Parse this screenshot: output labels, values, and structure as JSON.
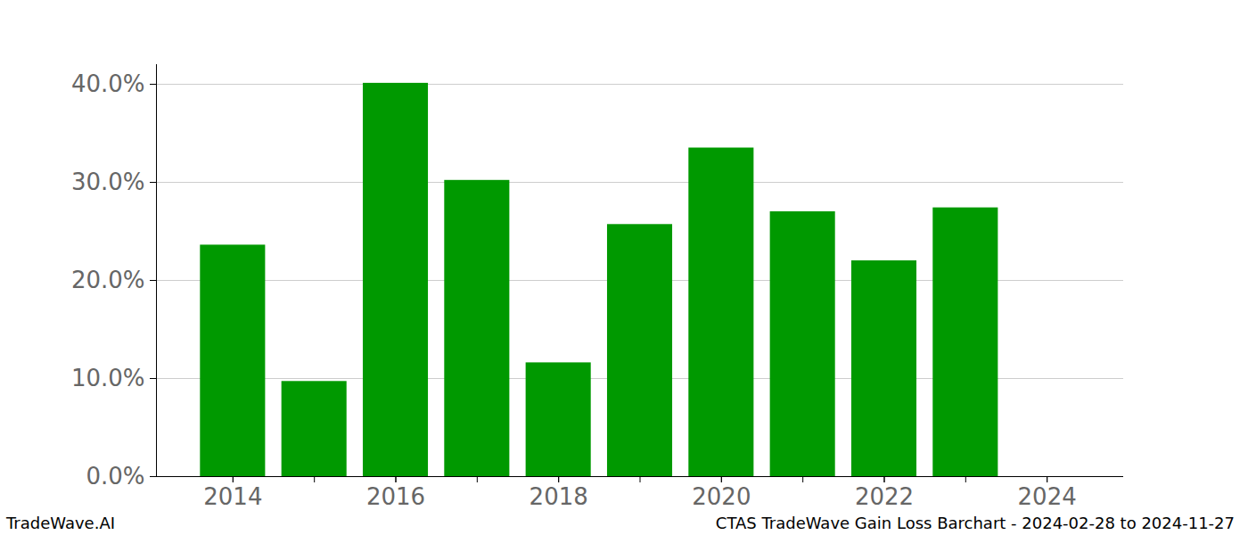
{
  "chart_data": {
    "type": "bar",
    "x": [
      2014,
      2015,
      2016,
      2017,
      2018,
      2019,
      2020,
      2021,
      2022,
      2023,
      2024
    ],
    "values": [
      23.6,
      9.7,
      40.1,
      30.2,
      11.6,
      25.7,
      33.5,
      27.0,
      22.0,
      27.4,
      0
    ],
    "color": "#009900",
    "xlim": [
      2013.06,
      2024.94
    ],
    "xticks": [
      2014,
      2016,
      2018,
      2020,
      2022,
      2024
    ],
    "ylim": [
      0,
      42
    ],
    "yticks": [
      {
        "value": 0,
        "label": "0.0%"
      },
      {
        "value": 10,
        "label": "10.0%"
      },
      {
        "value": 20,
        "label": "20.0%"
      },
      {
        "value": 30,
        "label": "30.0%"
      },
      {
        "value": 40,
        "label": "40.0%"
      }
    ],
    "grid": true,
    "footer_left": "TradeWave.AI",
    "footer_right": "CTAS TradeWave Gain Loss Barchart - 2024-02-28 to 2024-11-27"
  }
}
